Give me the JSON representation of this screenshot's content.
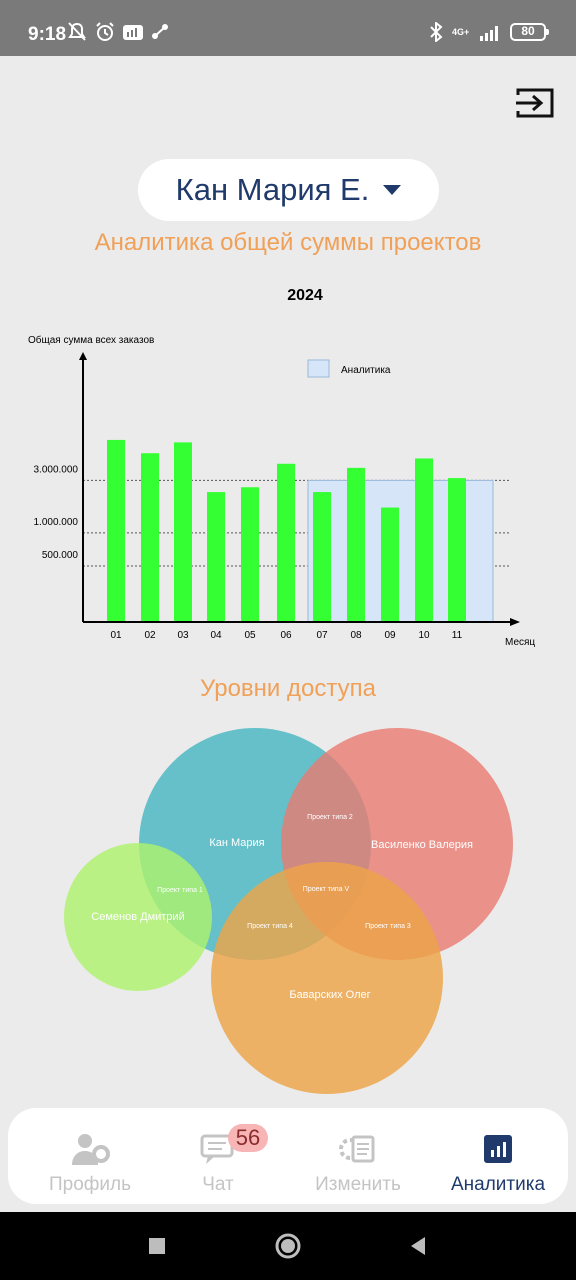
{
  "status_bar": {
    "time": "9:18",
    "left_icons": [
      "muted-bell-icon",
      "alarm-icon",
      "data-saver-icon",
      "share-icon"
    ],
    "network_label": "4G+",
    "battery_level": "80"
  },
  "header": {
    "logout_icon": "logout-icon"
  },
  "user_selector": {
    "name": "Кан Мария Е.",
    "dropdown_icon": "caret-down-icon"
  },
  "analytics_title": "Аналитика общей суммы проектов",
  "chart_data": {
    "type": "bar",
    "title": "2024",
    "ylabel": "Общая сумма всех заказов",
    "xlabel": "Месяц",
    "categories": [
      "01",
      "02",
      "03",
      "04",
      "05",
      "06",
      "07",
      "08",
      "09",
      "10",
      "11"
    ],
    "values": [
      7000000,
      5300000,
      6650000,
      2350000,
      2600000,
      4250000,
      2350000,
      3900000,
      1700000,
      4750000,
      3150000
    ],
    "y_tick_labels": [
      "500.000",
      "1.000.000",
      "3.000.000"
    ],
    "y_tick_values": [
      500000,
      1000000,
      3000000
    ],
    "y_scale": "log",
    "legend": {
      "label": "Аналитика",
      "position": "top-right"
    },
    "highlight_range": {
      "from": "07",
      "to": "11",
      "value": 3000000
    },
    "bar_color": "#33ff33",
    "highlight_color": "#d6e6f8",
    "gridlines": "dotted"
  },
  "access_title": "Уровни доступа",
  "venn": {
    "circles": [
      {
        "name": "Кан Мария",
        "color": "#4db8c4"
      },
      {
        "name": "Василенко Валерия",
        "color": "#ea7b70"
      },
      {
        "name": "Семенов Дмитрий",
        "color": "#aef26a"
      },
      {
        "name": "Баварских Олег",
        "color": "#eda448"
      }
    ],
    "intersections": [
      "Проект типа 1",
      "Проект типа 2",
      "Проект типа V",
      "Проект типа 4",
      "Проект типа 3"
    ]
  },
  "bottom_nav": {
    "items": [
      {
        "label": "Профиль",
        "icon": "profile-gear-icon",
        "active": false
      },
      {
        "label": "Чат",
        "icon": "chat-icon",
        "badge": "56",
        "active": false
      },
      {
        "label": "Изменить",
        "icon": "edit-document-icon",
        "active": false
      },
      {
        "label": "Аналитика",
        "icon": "analytics-chart-icon",
        "active": true
      }
    ]
  },
  "system_nav": [
    "recent-apps-icon",
    "home-icon",
    "back-icon"
  ],
  "colors": {
    "accent_orange": "#f0a057",
    "primary_navy": "#1f3a6b",
    "status_bar": "#7a7a7a",
    "background": "#ebebeb"
  }
}
